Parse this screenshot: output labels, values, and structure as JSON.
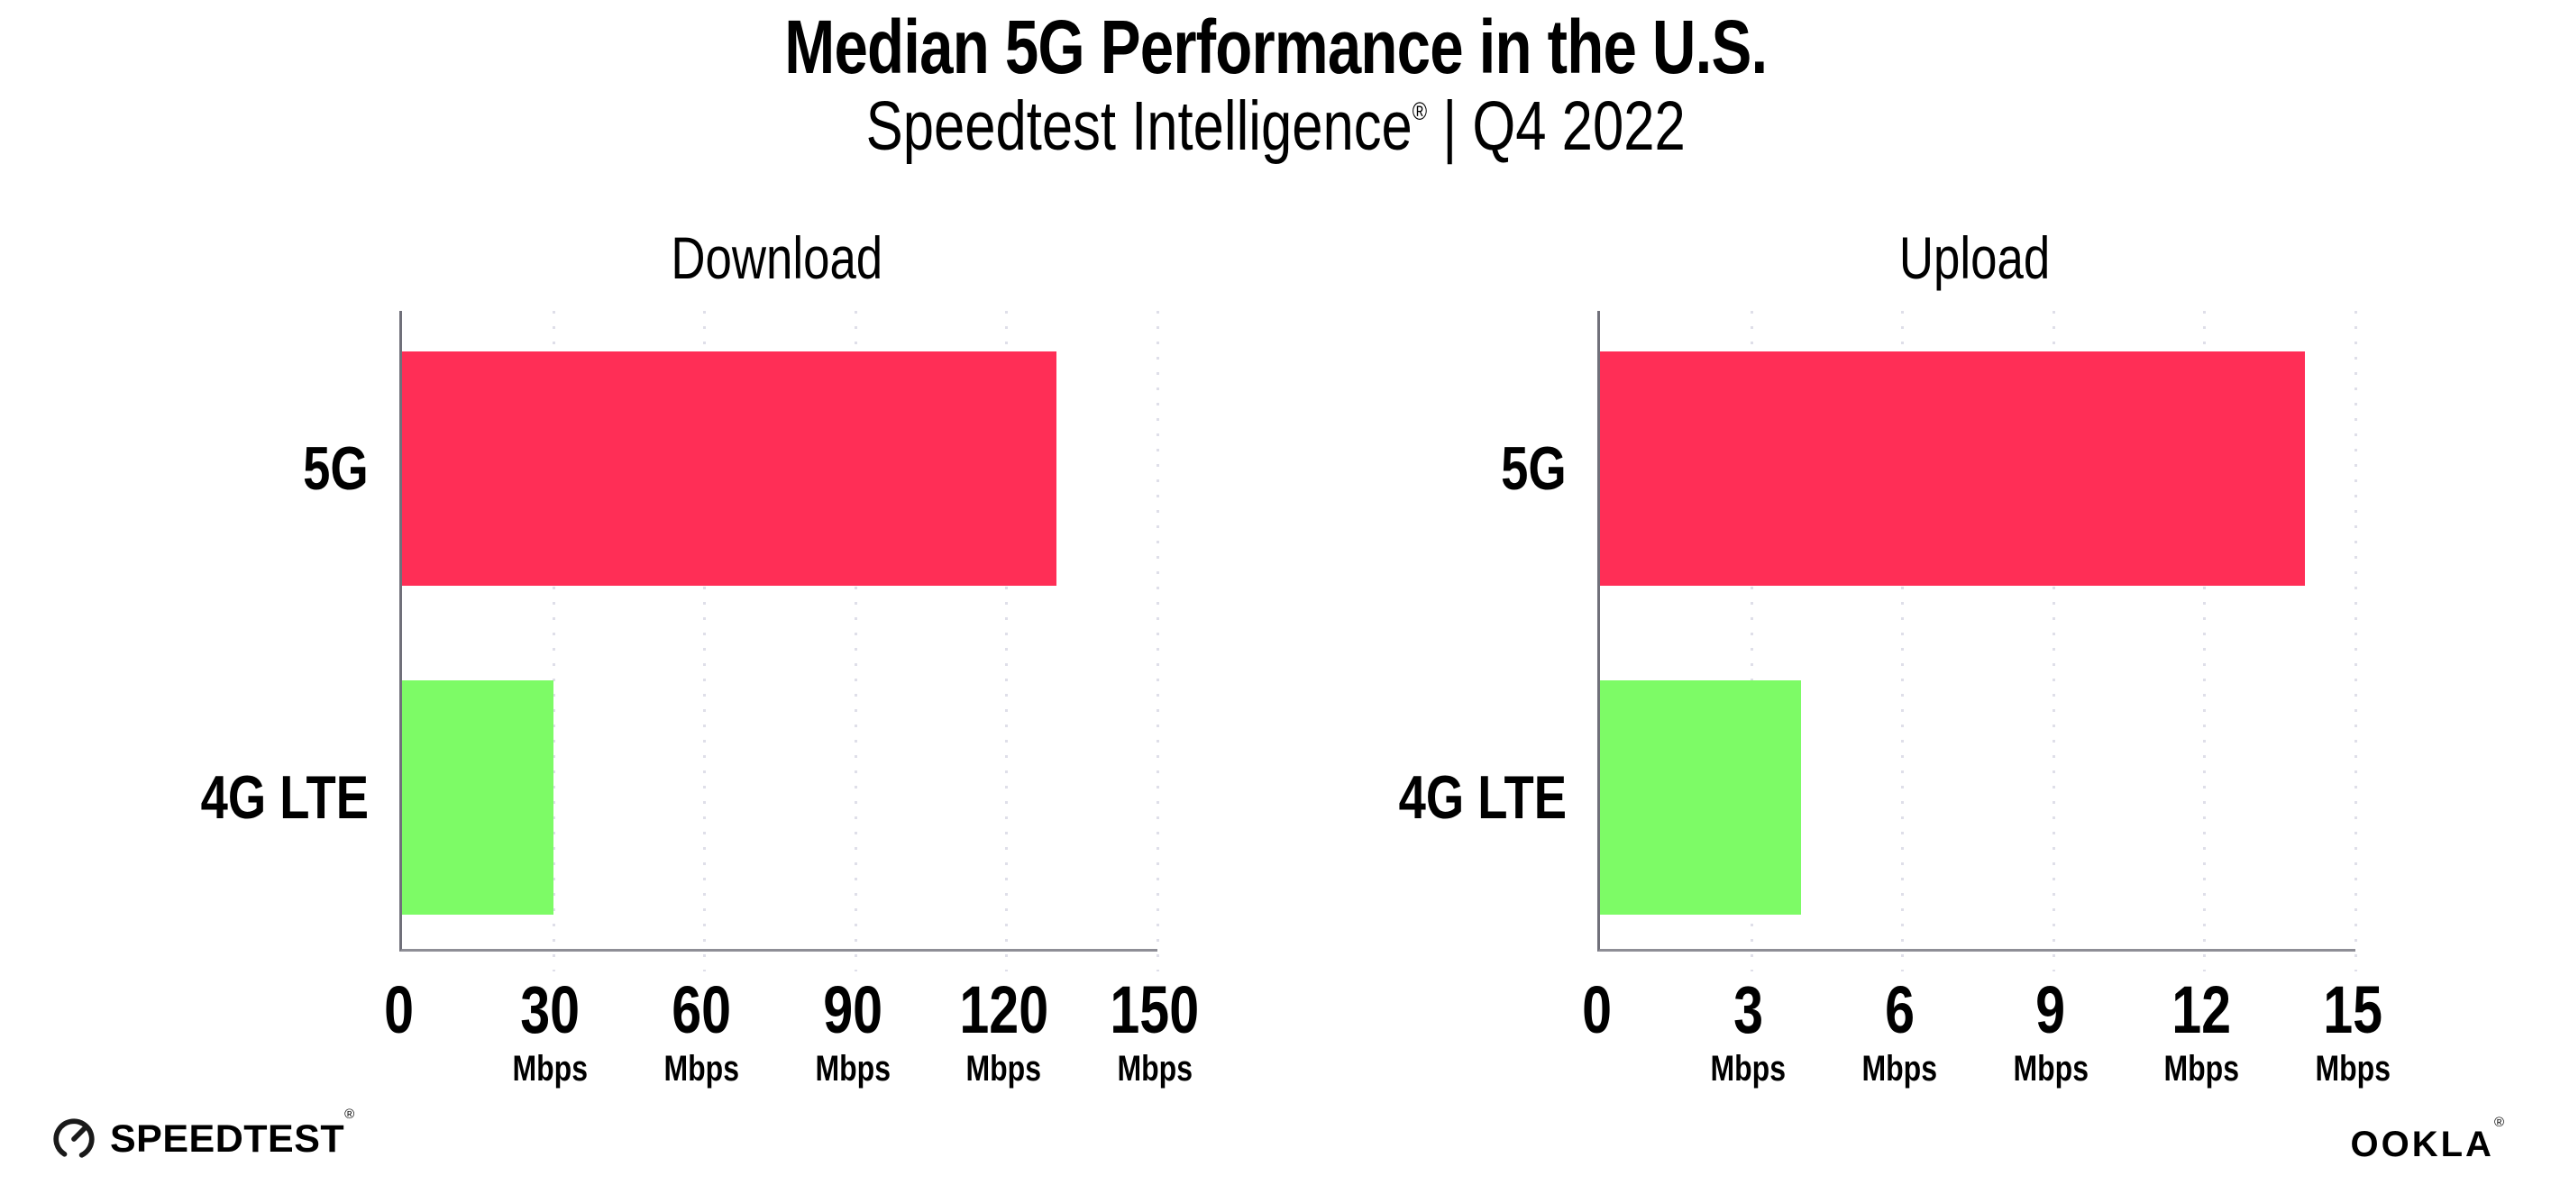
{
  "header": {
    "title": "Median 5G Performance in the U.S.",
    "subtitle_brand": "Speedtest Intelligence",
    "subtitle_reg": "®",
    "subtitle_period": " | Q4 2022"
  },
  "chart_data": [
    {
      "type": "bar",
      "orientation": "horizontal",
      "title": "Download",
      "categories": [
        "5G",
        "4G LTE"
      ],
      "values": [
        130,
        30
      ],
      "unit": "Mbps",
      "xlim": [
        0,
        150
      ],
      "xticks": [
        0,
        30,
        60,
        90,
        120,
        150
      ],
      "bar_colors": [
        "#FF2E56",
        "#7DFB66"
      ],
      "grid": "vertical-dotted",
      "legend": "none"
    },
    {
      "type": "bar",
      "orientation": "horizontal",
      "title": "Upload",
      "categories": [
        "5G",
        "4G LTE"
      ],
      "values": [
        14,
        4
      ],
      "unit": "Mbps",
      "xlim": [
        0,
        15
      ],
      "xticks": [
        0,
        3,
        6,
        9,
        12,
        15
      ],
      "bar_colors": [
        "#FF2E56",
        "#7DFB66"
      ],
      "grid": "vertical-dotted",
      "legend": "none"
    }
  ],
  "footer": {
    "speedtest_label": "SPEEDTEST",
    "speedtest_reg": "®",
    "ookla_label": "OOKLA",
    "ookla_reg": "®"
  },
  "colors": {
    "bar_5g": "#FF2E56",
    "bar_4g_lte": "#7DFB66",
    "axis_line": "#8E8E96",
    "grid_dot": "#DFDFE9",
    "text": "#000000",
    "background": "#FFFFFF"
  }
}
